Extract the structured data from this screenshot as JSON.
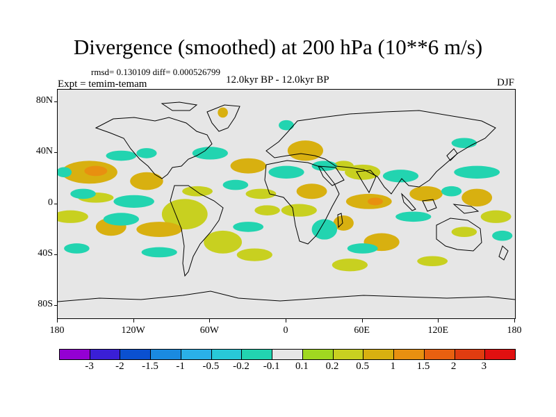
{
  "title": "Divergence (smoothed) at 200 hPa (10**6 m/s)",
  "stats": "rmsd= 0.130109 diff= 0.000526799",
  "experiment": "Expt = temim-temam",
  "period": "12.0kyr BP - 12.0kyr BP",
  "season": "DJF",
  "map": {
    "lat_range": [
      -90,
      90
    ],
    "lon_range": [
      -180,
      180
    ],
    "y_ticks": [
      {
        "label": "80N",
        "lat": 80
      },
      {
        "label": "40N",
        "lat": 40
      },
      {
        "label": "0",
        "lat": 0
      },
      {
        "label": "40S",
        "lat": -40
      },
      {
        "label": "80S",
        "lat": -80
      }
    ],
    "x_ticks": [
      {
        "label": "180",
        "lon": -180
      },
      {
        "label": "120W",
        "lon": -120
      },
      {
        "label": "60W",
        "lon": -60
      },
      {
        "label": "0",
        "lon": 0
      },
      {
        "label": "60E",
        "lon": 60
      },
      {
        "label": "120E",
        "lon": 120
      },
      {
        "label": "180",
        "lon": 180
      }
    ],
    "fields": [
      {
        "lon": -155,
        "lat": 25,
        "rx": 22,
        "ry": 9,
        "value": 0.5
      },
      {
        "lon": -150,
        "lat": 26,
        "rx": 9,
        "ry": 4,
        "value": 1
      },
      {
        "lon": -150,
        "lat": 5,
        "rx": 14,
        "ry": 4,
        "value": 0.2
      },
      {
        "lon": -170,
        "lat": -10,
        "rx": 14,
        "ry": 5,
        "value": 0.2
      },
      {
        "lon": -138,
        "lat": -18,
        "rx": 12,
        "ry": 7,
        "value": 0.5
      },
      {
        "lon": -110,
        "lat": 18,
        "rx": 13,
        "ry": 7,
        "value": 0.5
      },
      {
        "lon": -80,
        "lat": -8,
        "rx": 18,
        "ry": 12,
        "value": 0.2
      },
      {
        "lon": -70,
        "lat": 10,
        "rx": 12,
        "ry": 4,
        "value": 0.2
      },
      {
        "lon": -100,
        "lat": -20,
        "rx": 18,
        "ry": 6,
        "value": 0.5
      },
      {
        "lon": -30,
        "lat": 30,
        "rx": 14,
        "ry": 6,
        "value": 0.5
      },
      {
        "lon": -50,
        "lat": -30,
        "rx": 15,
        "ry": 9,
        "value": 0.2
      },
      {
        "lon": -20,
        "lat": 8,
        "rx": 12,
        "ry": 4,
        "value": 0.2
      },
      {
        "lon": -15,
        "lat": -5,
        "rx": 10,
        "ry": 4,
        "value": 0.2
      },
      {
        "lon": -25,
        "lat": -40,
        "rx": 14,
        "ry": 5,
        "value": 0.2
      },
      {
        "lon": -50,
        "lat": 72,
        "rx": 4,
        "ry": 4,
        "value": 0.5
      },
      {
        "lon": 15,
        "lat": 42,
        "rx": 14,
        "ry": 8,
        "value": 0.5
      },
      {
        "lon": 20,
        "lat": 10,
        "rx": 12,
        "ry": 6,
        "value": 0.5
      },
      {
        "lon": 45,
        "lat": 30,
        "rx": 8,
        "ry": 4,
        "value": 0.2
      },
      {
        "lon": 10,
        "lat": -5,
        "rx": 14,
        "ry": 5,
        "value": 0.2
      },
      {
        "lon": 65,
        "lat": 2,
        "rx": 18,
        "ry": 6,
        "value": 0.5
      },
      {
        "lon": 70,
        "lat": 2,
        "rx": 6,
        "ry": 3,
        "value": 1
      },
      {
        "lon": 60,
        "lat": 25,
        "rx": 14,
        "ry": 6,
        "value": 0.2
      },
      {
        "lon": 75,
        "lat": -30,
        "rx": 14,
        "ry": 7,
        "value": 0.5
      },
      {
        "lon": 45,
        "lat": -15,
        "rx": 8,
        "ry": 6,
        "value": 0.5
      },
      {
        "lon": 110,
        "lat": 8,
        "rx": 13,
        "ry": 6,
        "value": 0.5
      },
      {
        "lon": 150,
        "lat": 5,
        "rx": 12,
        "ry": 7,
        "value": 0.5
      },
      {
        "lon": 165,
        "lat": -10,
        "rx": 12,
        "ry": 5,
        "value": 0.2
      },
      {
        "lon": 140,
        "lat": -22,
        "rx": 10,
        "ry": 4,
        "value": 0.2
      },
      {
        "lon": 115,
        "lat": -45,
        "rx": 12,
        "ry": 4,
        "value": 0.2
      },
      {
        "lon": 50,
        "lat": -48,
        "rx": 14,
        "ry": 5,
        "value": 0.2
      },
      {
        "lon": -130,
        "lat": 38,
        "rx": 12,
        "ry": 4,
        "value": -0.2
      },
      {
        "lon": -110,
        "lat": 40,
        "rx": 8,
        "ry": 4,
        "value": -0.2
      },
      {
        "lon": -60,
        "lat": 40,
        "rx": 14,
        "ry": 5,
        "value": -0.2
      },
      {
        "lon": -160,
        "lat": 8,
        "rx": 10,
        "ry": 4,
        "value": -0.2
      },
      {
        "lon": -120,
        "lat": 2,
        "rx": 16,
        "ry": 5,
        "value": -0.2
      },
      {
        "lon": -130,
        "lat": -12,
        "rx": 14,
        "ry": 5,
        "value": -0.2
      },
      {
        "lon": -165,
        "lat": -35,
        "rx": 10,
        "ry": 4,
        "value": -0.2
      },
      {
        "lon": -100,
        "lat": -38,
        "rx": 14,
        "ry": 4,
        "value": -0.2
      },
      {
        "lon": -40,
        "lat": 15,
        "rx": 10,
        "ry": 4,
        "value": -0.2
      },
      {
        "lon": -30,
        "lat": -18,
        "rx": 12,
        "ry": 4,
        "value": -0.2
      },
      {
        "lon": 0,
        "lat": 25,
        "rx": 14,
        "ry": 5,
        "value": -0.2
      },
      {
        "lon": 30,
        "lat": 30,
        "rx": 10,
        "ry": 4,
        "value": -0.2
      },
      {
        "lon": 30,
        "lat": -20,
        "rx": 10,
        "ry": 8,
        "value": -0.2
      },
      {
        "lon": 90,
        "lat": 22,
        "rx": 14,
        "ry": 5,
        "value": -0.2
      },
      {
        "lon": 100,
        "lat": -10,
        "rx": 14,
        "ry": 4,
        "value": -0.2
      },
      {
        "lon": 130,
        "lat": 10,
        "rx": 8,
        "ry": 4,
        "value": -0.2
      },
      {
        "lon": 150,
        "lat": 25,
        "rx": 18,
        "ry": 5,
        "value": -0.2
      },
      {
        "lon": 170,
        "lat": -25,
        "rx": 8,
        "ry": 4,
        "value": -0.2
      },
      {
        "lon": 0,
        "lat": 62,
        "rx": 6,
        "ry": 4,
        "value": -0.2
      },
      {
        "lon": 60,
        "lat": -35,
        "rx": 12,
        "ry": 4,
        "value": -0.2
      },
      {
        "lon": 140,
        "lat": 48,
        "rx": 10,
        "ry": 4,
        "value": -0.2
      },
      {
        "lon": -175,
        "lat": 25,
        "rx": 6,
        "ry": 4,
        "value": -0.2
      }
    ]
  },
  "colorbar": {
    "colors": [
      "#9400d3",
      "#3a1fd6",
      "#0a50d0",
      "#1a8ae0",
      "#2ab0e8",
      "#28c8d8",
      "#22d4b0",
      "#e6e6e6",
      "#a0d820",
      "#c8d020",
      "#d8b010",
      "#e89010",
      "#e86010",
      "#e03c10",
      "#e01010"
    ],
    "labels": [
      "-3",
      "-2",
      "-1.5",
      "-1",
      "-0.5",
      "-0.2",
      "-0.1",
      "0.1",
      "0.2",
      "0.5",
      "1",
      "1.5",
      "2",
      "3"
    ],
    "levels": [
      -3,
      -2,
      -1.5,
      -1,
      -0.5,
      -0.2,
      -0.1,
      0.1,
      0.2,
      0.5,
      1,
      1.5,
      2,
      3
    ]
  }
}
